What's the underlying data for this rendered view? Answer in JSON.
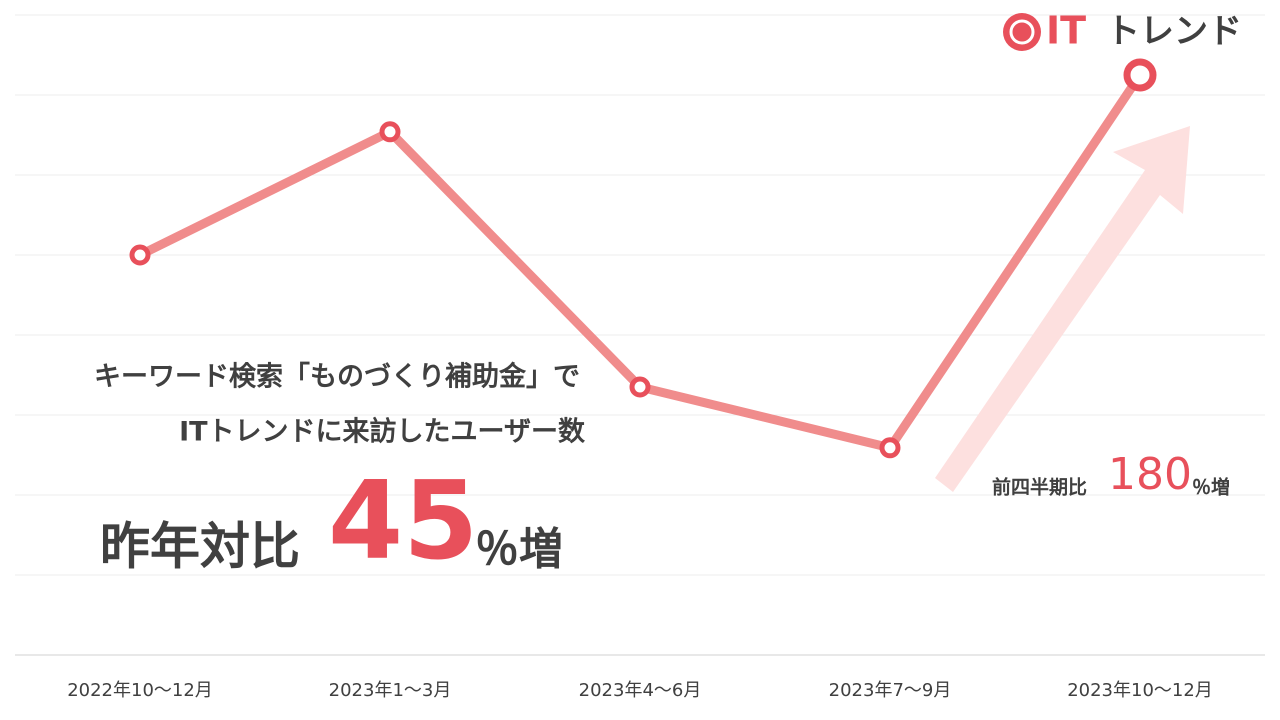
{
  "chart_data": {
    "type": "line",
    "categories": [
      "2022年10～12月",
      "2023年1～3月",
      "2023年4～6月",
      "2023年7～9月",
      "2023年10～12月"
    ],
    "series": [
      {
        "name": "ITトレンドに来訪したユーザー数",
        "color": "#f08c8c",
        "values": [
          5.0,
          6.54,
          3.35,
          2.59,
          7.25
        ]
      }
    ],
    "marker_color": "#e8505b",
    "ylim": [
      0,
      8
    ],
    "yticks": [
      0,
      1,
      2,
      3,
      4,
      5,
      6,
      7,
      8
    ],
    "grid": true,
    "annotations": {
      "headline_1": "キーワード検索「ものづくり補助金」で",
      "headline_2": "ITトレンドに来訪したユーザー数",
      "yoy_label": "昨年対比",
      "yoy_value": "45",
      "yoy_unit": "％増",
      "qoq_label": "前四半期比",
      "qoq_value": "180",
      "qoq_unit": "％増"
    }
  },
  "logo": {
    "brand_it": "IT",
    "brand_rest": "トレンド"
  }
}
